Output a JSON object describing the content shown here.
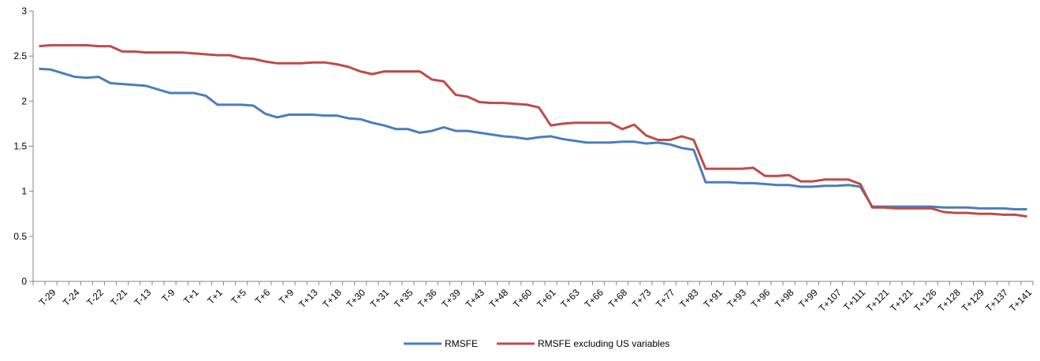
{
  "chart_data": {
    "type": "line",
    "categories": [
      null,
      "T-29",
      null,
      "T-24",
      null,
      "T-22",
      null,
      "T-21",
      null,
      "T-13",
      null,
      "T-9",
      null,
      "T+1",
      null,
      "T+1",
      null,
      "T+5",
      null,
      "T+6",
      null,
      "T+9",
      null,
      "T+13",
      null,
      "T+18",
      null,
      "T+30",
      null,
      "T+31",
      null,
      "T+35",
      null,
      "T+36",
      null,
      "T+39",
      null,
      "T+43",
      null,
      "T+48",
      null,
      "T+60",
      null,
      "T+61",
      null,
      "T+63",
      null,
      "T+66",
      null,
      "T+68",
      null,
      "T+73",
      null,
      "T+77",
      null,
      "T+83",
      null,
      "T+91",
      null,
      "T+93",
      null,
      "T+96",
      null,
      "T+98",
      null,
      "T+99",
      null,
      "T+107",
      null,
      "T+111",
      null,
      "T+121",
      null,
      "T+121",
      null,
      "T+126",
      null,
      "T+128",
      null,
      "T+129",
      null,
      "T+137",
      null,
      "T+141"
    ],
    "series": [
      {
        "name": "RMSFE",
        "color": "#4a7ebb",
        "values": [
          2.36,
          2.35,
          2.31,
          2.27,
          2.26,
          2.27,
          2.2,
          2.19,
          2.18,
          2.17,
          2.13,
          2.09,
          2.09,
          2.09,
          2.06,
          1.96,
          1.96,
          1.96,
          1.95,
          1.86,
          1.82,
          1.85,
          1.85,
          1.85,
          1.84,
          1.84,
          1.81,
          1.8,
          1.76,
          1.73,
          1.69,
          1.69,
          1.65,
          1.67,
          1.71,
          1.67,
          1.67,
          1.65,
          1.63,
          1.61,
          1.6,
          1.58,
          1.6,
          1.61,
          1.58,
          1.56,
          1.54,
          1.54,
          1.54,
          1.55,
          1.55,
          1.53,
          1.54,
          1.52,
          1.48,
          1.46,
          1.1,
          1.1,
          1.1,
          1.09,
          1.09,
          1.08,
          1.07,
          1.07,
          1.05,
          1.05,
          1.06,
          1.06,
          1.07,
          1.05,
          0.83,
          0.83,
          0.83,
          0.83,
          0.83,
          0.83,
          0.82,
          0.82,
          0.82,
          0.81,
          0.81,
          0.81,
          0.8,
          0.8
        ]
      },
      {
        "name": "RMSFE excluding US variables",
        "color": "#be4b48",
        "values": [
          2.61,
          2.62,
          2.62,
          2.62,
          2.62,
          2.61,
          2.61,
          2.55,
          2.55,
          2.54,
          2.54,
          2.54,
          2.54,
          2.53,
          2.52,
          2.51,
          2.51,
          2.48,
          2.47,
          2.44,
          2.42,
          2.42,
          2.42,
          2.43,
          2.43,
          2.41,
          2.38,
          2.33,
          2.3,
          2.33,
          2.33,
          2.33,
          2.33,
          2.24,
          2.22,
          2.07,
          2.05,
          1.99,
          1.98,
          1.98,
          1.97,
          1.96,
          1.93,
          1.73,
          1.75,
          1.76,
          1.76,
          1.76,
          1.76,
          1.69,
          1.74,
          1.62,
          1.57,
          1.57,
          1.61,
          1.57,
          1.25,
          1.25,
          1.25,
          1.25,
          1.26,
          1.17,
          1.17,
          1.18,
          1.11,
          1.11,
          1.13,
          1.13,
          1.13,
          1.08,
          0.82,
          0.82,
          0.81,
          0.81,
          0.81,
          0.81,
          0.77,
          0.76,
          0.76,
          0.75,
          0.75,
          0.74,
          0.74,
          0.72
        ]
      }
    ],
    "ylim": [
      0,
      3
    ],
    "yticks": [
      0,
      0.5,
      1,
      1.5,
      2,
      2.5,
      3
    ],
    "grid": false,
    "legend": "bottom"
  }
}
